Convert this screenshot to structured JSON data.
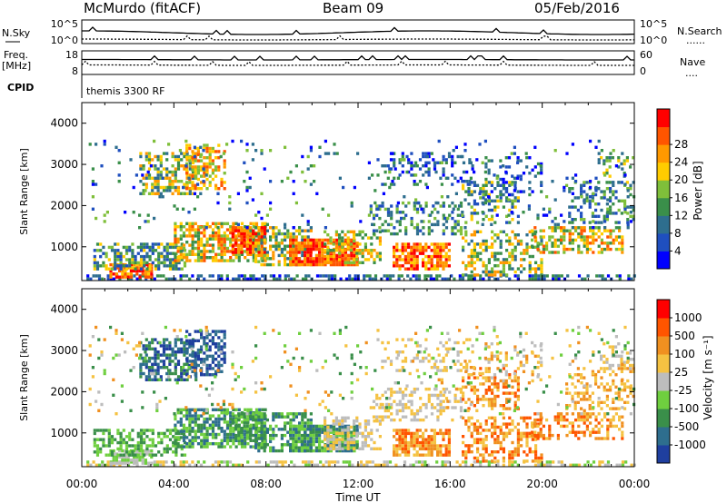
{
  "header": {
    "station": "McMurdo (fitACF)",
    "beam": "Beam 09",
    "date": "05/Feb/2016"
  },
  "noise_panel": {
    "left_label": "N.Sky",
    "left_ticks": [
      "10^5",
      "10^0"
    ],
    "right_ticks": [
      "10^5",
      "10^0"
    ],
    "right_label": "N.Search",
    "right_legend": "......"
  },
  "freq_panel": {
    "left_label_1": "Freq.",
    "left_label_2": "[MHz]",
    "left_ticks": [
      "18",
      "8"
    ],
    "right_ticks": [
      "60",
      "0"
    ],
    "right_label": "Nave",
    "right_legend": "...."
  },
  "cpid": {
    "label": "CPID",
    "value": "themis 3300 RF"
  },
  "colors": {
    "power": [
      "#0000ff",
      "#1f4fbf",
      "#2e6e8e",
      "#3a8f4a",
      "#7fbf3a",
      "#ffcc00",
      "#ff9900",
      "#ff5500",
      "#ff0000"
    ],
    "velocity": [
      "#1f3f9f",
      "#2e6e8e",
      "#3a8f4a",
      "#6fcf3f",
      "#bdbdbd",
      "#f5c242",
      "#f09020",
      "#ff5500",
      "#ff0000"
    ]
  },
  "chart_data": [
    {
      "type": "heatmap",
      "name": "Power",
      "ylabel": "Slant Range [km]",
      "ylim": [
        180,
        4500
      ],
      "y_ticks": [
        "1000",
        "2000",
        "3000",
        "4000"
      ],
      "x_ticks": [
        "00:00",
        "04:00",
        "08:00",
        "12:00",
        "16:00",
        "20:00",
        "00:00"
      ],
      "colorbar_label": "Power [dB]",
      "colorbar_ticks": [
        "4",
        "8",
        "12",
        "16",
        "20",
        "24",
        "28"
      ]
    },
    {
      "type": "heatmap",
      "name": "Velocity",
      "ylabel": "Slant Range [km]",
      "ylim": [
        180,
        4500
      ],
      "y_ticks": [
        "1000",
        "2000",
        "3000",
        "4000"
      ],
      "x_ticks": [
        "00:00",
        "04:00",
        "08:00",
        "12:00",
        "16:00",
        "20:00",
        "00:00"
      ],
      "xlabel": "Time UT",
      "colorbar_label": "Velocity [m s⁻¹]",
      "colorbar_ticks": [
        "1000",
        "500",
        "100",
        "25",
        "-25",
        "-100",
        "-500",
        "-1000"
      ]
    }
  ]
}
